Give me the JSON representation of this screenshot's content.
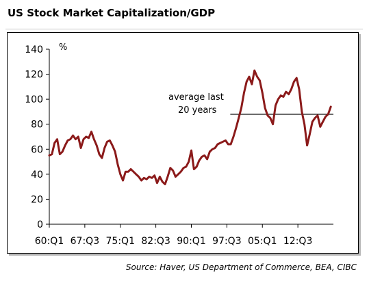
{
  "title": "US Stock Market Capitalization/GDP",
  "source": "Source:  Haver, US Department of Commerce, BEA, CIBC",
  "chart_data": {
    "type": "line",
    "title": "US Stock Market Capitalization/GDP",
    "ylabel": "%",
    "ylim": [
      0,
      140
    ],
    "yticks": [
      0,
      20,
      40,
      60,
      80,
      100,
      120,
      140
    ],
    "xticks": [
      "60:Q1",
      "67:Q3",
      "75:Q1",
      "82:Q3",
      "90:Q1",
      "97:Q3",
      "05:Q1",
      "12:Q3"
    ],
    "xlim": [
      1960.0,
      2014.0
    ],
    "grid": false,
    "legend": "none",
    "line_color": "#8b1a1a",
    "annotation": {
      "text_line1": "average last",
      "text_line2": "20 years",
      "average_value": 88,
      "from_x": 1994.4,
      "to_x": 2014.0
    },
    "series": [
      {
        "x": [
          1960.0,
          1960.5,
          1961.0,
          1961.5,
          1962.0,
          1962.5,
          1963.0,
          1963.5,
          1964.0,
          1964.5,
          1965.0,
          1965.5,
          1966.0,
          1966.5,
          1967.0,
          1967.5,
          1968.0,
          1968.5,
          1969.0,
          1969.5,
          1970.0,
          1970.5,
          1971.0,
          1971.5,
          1972.0,
          1972.5,
          1973.0,
          1973.5,
          1974.0,
          1974.5,
          1975.0,
          1975.5,
          1976.0,
          1976.5,
          1977.0,
          1977.5,
          1978.0,
          1978.5,
          1979.0,
          1979.5,
          1980.0,
          1980.5,
          1981.0,
          1981.5,
          1982.0,
          1982.5,
          1983.0,
          1983.5,
          1984.0,
          1984.5,
          1985.0,
          1985.5,
          1986.0,
          1986.5,
          1987.0,
          1987.5,
          1988.0,
          1988.5,
          1989.0,
          1989.5,
          1990.0,
          1990.5,
          1991.0,
          1991.5,
          1992.0,
          1992.5,
          1993.0,
          1993.5,
          1994.0,
          1994.5,
          1995.0,
          1995.5,
          1996.0,
          1996.5,
          1997.0,
          1997.5,
          1998.0,
          1998.5,
          1999.0,
          1999.5,
          2000.0,
          2000.5,
          2001.0,
          2001.5,
          2002.0,
          2002.5,
          2003.0,
          2003.5,
          2004.0,
          2004.5,
          2005.0,
          2005.5,
          2006.0,
          2006.5,
          2007.0,
          2007.5,
          2008.0,
          2008.5,
          2009.0,
          2009.5,
          2010.0,
          2010.5,
          2011.0,
          2011.5,
          2012.0,
          2012.5,
          2013.0,
          2013.5
        ],
        "values": [
          55,
          56,
          65,
          68,
          56,
          58,
          63,
          67,
          68,
          71,
          68,
          70,
          61,
          68,
          70,
          69,
          74,
          68,
          63,
          56,
          53,
          61,
          66,
          67,
          63,
          58,
          48,
          40,
          35,
          42,
          42,
          44,
          42,
          40,
          38,
          35,
          37,
          36,
          38,
          37,
          39,
          33,
          38,
          34,
          32,
          38,
          45,
          43,
          38,
          40,
          42,
          45,
          46,
          50,
          59,
          44,
          46,
          51,
          54,
          55,
          52,
          58,
          60,
          61,
          64,
          65,
          66,
          67,
          64,
          64,
          70,
          77,
          85,
          93,
          105,
          114,
          118,
          112,
          123,
          118,
          115,
          105,
          93,
          87,
          85,
          80,
          95,
          100,
          103,
          102,
          106,
          104,
          108,
          114,
          117,
          108,
          90,
          80,
          63,
          72,
          82,
          85,
          87,
          78,
          82,
          86,
          88,
          94
        ]
      }
    ]
  }
}
